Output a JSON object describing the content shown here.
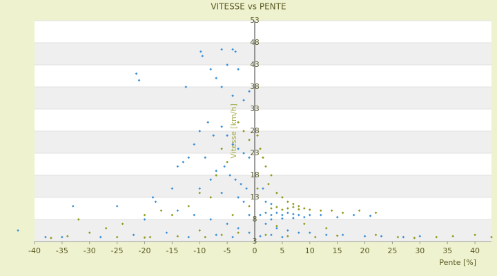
{
  "chart_data": {
    "type": "scatter",
    "title": "VITESSE vs PENTE",
    "x_label": "Pente [%]",
    "y_label": "Vitesse [km/h]",
    "xlim": [
      -40,
      43
    ],
    "ylim": [
      3,
      53
    ],
    "xticks": [
      -40,
      -35,
      -30,
      -25,
      -20,
      -15,
      -10,
      -5,
      0,
      5,
      10,
      15,
      20,
      25,
      30,
      35,
      40
    ],
    "yticks": [
      3,
      8,
      13,
      18,
      23,
      28,
      33,
      38,
      43,
      48,
      53
    ],
    "grid": true,
    "series": [
      {
        "color": "#3a8fd6",
        "x": [
          -21.5,
          -21,
          -9.8,
          -9.5,
          -6,
          -4,
          -3.5,
          -12.5,
          -8,
          -7,
          -5,
          -3,
          -1,
          -6,
          -4,
          -2,
          -8.5,
          -7.5,
          -10,
          -11,
          -12,
          -13,
          -9,
          -6,
          -5,
          -4,
          -3,
          -2,
          -1,
          -5.5,
          -4.5,
          -3.5,
          -2.5,
          -1.5,
          -7,
          -8,
          -10,
          -6,
          -3,
          -2,
          -14,
          -15,
          -18,
          -18.5,
          -25,
          -33,
          -20,
          -14,
          -11,
          -8,
          -5,
          -3,
          -1,
          -1,
          -16,
          -22,
          -28,
          -35,
          -38,
          -43,
          -12,
          -7,
          -4,
          1,
          2,
          3,
          4,
          5,
          6,
          7,
          8,
          9,
          10,
          12,
          15,
          18,
          21,
          3,
          5,
          7,
          2,
          4,
          6,
          8,
          10,
          13,
          16,
          20,
          23,
          27,
          30,
          1,
          3,
          5,
          3,
          2,
          1.5
        ],
        "values": [
          41,
          39.5,
          46,
          45,
          46.5,
          46.5,
          46,
          38,
          42,
          40,
          43,
          42,
          37,
          38,
          36,
          35,
          30,
          27,
          28,
          25,
          22,
          21,
          22,
          29,
          27,
          25,
          24,
          23,
          22,
          20,
          18,
          17,
          16,
          15,
          19,
          17,
          15,
          14,
          13,
          12,
          20,
          15,
          12,
          13,
          11,
          11,
          8,
          10,
          9,
          8,
          7,
          6,
          9,
          5,
          5,
          4.5,
          4,
          4,
          4,
          5.5,
          4,
          4.5,
          4,
          9,
          9.5,
          9,
          9.5,
          9,
          9.5,
          9.2,
          9,
          8.5,
          9,
          9,
          8.5,
          9,
          8.8,
          8,
          8.2,
          8.3,
          7,
          6,
          5.5,
          5,
          5,
          4.5,
          4.5,
          4.2,
          4.2,
          4,
          4.2,
          4.2,
          4.5,
          4,
          11.5,
          12,
          15
        ]
      },
      {
        "color": "#8f9a1e",
        "x": [
          -3,
          -2,
          -1,
          0.5,
          1,
          1.5,
          2,
          3,
          2.5,
          4,
          5,
          6,
          7,
          8,
          9,
          10,
          12,
          14,
          16,
          19,
          22,
          3,
          4,
          5,
          6,
          7,
          8,
          -5,
          -6,
          -7,
          -8,
          -10,
          -12,
          -15,
          -17,
          -20,
          -24,
          -27,
          -32,
          -30,
          -34,
          -37,
          -25,
          -19,
          -14,
          -9,
          -6,
          -3,
          -1,
          2,
          6,
          11,
          15,
          22,
          26,
          29,
          33,
          36,
          40,
          43,
          -20,
          -10,
          -4,
          0.5,
          4,
          9,
          13
        ],
        "values": [
          30,
          28,
          26,
          27,
          24,
          22,
          20,
          18,
          16,
          14,
          13,
          12,
          11.5,
          11,
          10.5,
          10.2,
          10,
          10,
          9.5,
          10,
          9.5,
          10.5,
          10.8,
          10.2,
          10.5,
          10.8,
          10.3,
          21,
          24,
          18,
          13,
          14,
          11,
          9,
          10,
          9,
          7,
          6,
          8,
          5,
          4.2,
          3.8,
          4,
          4,
          4.2,
          4,
          4.5,
          5,
          11,
          4.5,
          4.2,
          4,
          4.3,
          4.5,
          4,
          3.8,
          4,
          4.2,
          4.5,
          4,
          3.9,
          5.5,
          9,
          15,
          6.5,
          7,
          6
        ]
      }
    ]
  }
}
